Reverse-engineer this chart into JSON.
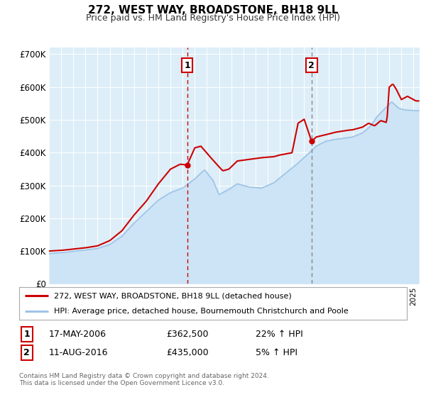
{
  "title": "272, WEST WAY, BROADSTONE, BH18 9LL",
  "subtitle": "Price paid vs. HM Land Registry's House Price Index (HPI)",
  "xlim": [
    1995.0,
    2025.5
  ],
  "ylim": [
    0,
    720000
  ],
  "yticks": [
    0,
    100000,
    200000,
    300000,
    400000,
    500000,
    600000,
    700000
  ],
  "ytick_labels": [
    "£0",
    "£100K",
    "£200K",
    "£300K",
    "£400K",
    "£500K",
    "£600K",
    "£700K"
  ],
  "sale1_x": 2006.37,
  "sale1_y": 362500,
  "sale1_label": "1",
  "sale1_date": "17-MAY-2006",
  "sale1_price": "£362,500",
  "sale1_hpi": "22% ↑ HPI",
  "sale2_x": 2016.61,
  "sale2_y": 435000,
  "sale2_label": "2",
  "sale2_date": "11-AUG-2016",
  "sale2_price": "£435,000",
  "sale2_hpi": "5% ↑ HPI",
  "property_color": "#cc0000",
  "hpi_color": "#a0c4e8",
  "hpi_fill_color": "#cce4f5",
  "vline1_color": "#cc0000",
  "vline2_color": "#888888",
  "legend_property": "272, WEST WAY, BROADSTONE, BH18 9LL (detached house)",
  "legend_hpi": "HPI: Average price, detached house, Bournemouth Christchurch and Poole",
  "footnote1": "Contains HM Land Registry data © Crown copyright and database right 2024.",
  "footnote2": "This data is licensed under the Open Government Licence v3.0.",
  "background_plot": "#ddeef8",
  "background_fig": "#ffffff",
  "hpi_anchors": [
    [
      1995.0,
      92000
    ],
    [
      1996.0,
      95000
    ],
    [
      1997.0,
      99000
    ],
    [
      1998.0,
      103000
    ],
    [
      1999.0,
      108000
    ],
    [
      2000.0,
      120000
    ],
    [
      2001.0,
      145000
    ],
    [
      2002.0,
      185000
    ],
    [
      2003.0,
      220000
    ],
    [
      2004.0,
      255000
    ],
    [
      2005.0,
      278000
    ],
    [
      2006.0,
      292000
    ],
    [
      2007.0,
      320000
    ],
    [
      2007.8,
      348000
    ],
    [
      2008.5,
      315000
    ],
    [
      2009.0,
      272000
    ],
    [
      2009.8,
      288000
    ],
    [
      2010.5,
      305000
    ],
    [
      2011.5,
      295000
    ],
    [
      2012.5,
      292000
    ],
    [
      2013.5,
      308000
    ],
    [
      2014.5,
      338000
    ],
    [
      2015.5,
      368000
    ],
    [
      2016.5,
      402000
    ],
    [
      2017.0,
      420000
    ],
    [
      2017.8,
      435000
    ],
    [
      2018.5,
      440000
    ],
    [
      2019.5,
      445000
    ],
    [
      2020.0,
      448000
    ],
    [
      2020.8,
      460000
    ],
    [
      2021.5,
      482000
    ],
    [
      2022.0,
      510000
    ],
    [
      2022.8,
      540000
    ],
    [
      2023.2,
      555000
    ],
    [
      2023.8,
      535000
    ],
    [
      2024.3,
      530000
    ],
    [
      2025.3,
      528000
    ]
  ],
  "prop_anchors": [
    [
      1995.0,
      100000
    ],
    [
      1996.0,
      102000
    ],
    [
      1997.0,
      106000
    ],
    [
      1998.0,
      110000
    ],
    [
      1999.0,
      116000
    ],
    [
      2000.0,
      132000
    ],
    [
      2001.0,
      162000
    ],
    [
      2002.0,
      210000
    ],
    [
      2003.0,
      252000
    ],
    [
      2004.0,
      305000
    ],
    [
      2005.0,
      350000
    ],
    [
      2005.8,
      365000
    ],
    [
      2006.37,
      362500
    ],
    [
      2007.0,
      415000
    ],
    [
      2007.5,
      420000
    ],
    [
      2008.2,
      390000
    ],
    [
      2008.8,
      365000
    ],
    [
      2009.3,
      345000
    ],
    [
      2009.8,
      350000
    ],
    [
      2010.5,
      375000
    ],
    [
      2011.5,
      380000
    ],
    [
      2012.5,
      385000
    ],
    [
      2013.5,
      388000
    ],
    [
      2014.0,
      393000
    ],
    [
      2015.0,
      400000
    ],
    [
      2015.5,
      490000
    ],
    [
      2016.0,
      502000
    ],
    [
      2016.61,
      435000
    ],
    [
      2017.0,
      448000
    ],
    [
      2017.8,
      455000
    ],
    [
      2018.5,
      462000
    ],
    [
      2019.5,
      468000
    ],
    [
      2020.0,
      470000
    ],
    [
      2020.8,
      478000
    ],
    [
      2021.3,
      490000
    ],
    [
      2021.8,
      482000
    ],
    [
      2022.3,
      498000
    ],
    [
      2022.8,
      492000
    ],
    [
      2023.0,
      600000
    ],
    [
      2023.3,
      610000
    ],
    [
      2023.6,
      592000
    ],
    [
      2024.0,
      562000
    ],
    [
      2024.5,
      572000
    ],
    [
      2025.2,
      558000
    ]
  ]
}
